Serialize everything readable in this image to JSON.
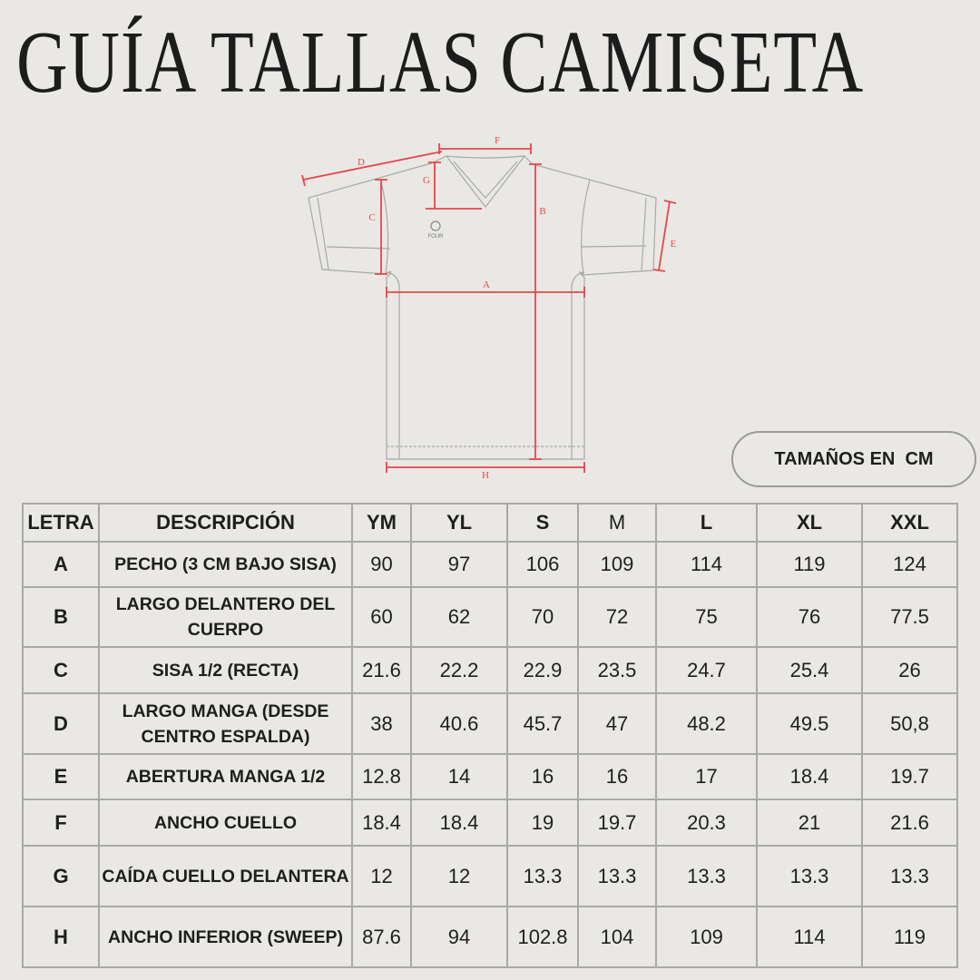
{
  "title": "GUÍA TALLAS CAMISETA",
  "diagram": {
    "labels": {
      "A": "A",
      "B": "B",
      "C": "C",
      "D": "D",
      "E": "E",
      "F": "F",
      "G": "G",
      "H": "H"
    },
    "logo_text": "FOUR",
    "measure_color": "#e8464a",
    "outline_color": "#a8a8a8"
  },
  "badge": "TAMAÑOS EN  CM",
  "table": {
    "headers": [
      "LETRA",
      "DESCRIPCIÓN",
      "YM",
      "YL",
      "S",
      "M",
      "L",
      "XL",
      "XXL"
    ],
    "rows": [
      {
        "letter": "A",
        "desc": "PECHO (3 CM BAJO SISA)",
        "values": [
          "90",
          "97",
          "106",
          "109",
          "114",
          "119",
          "124"
        ]
      },
      {
        "letter": "B",
        "desc": "LARGO DELANTERO DEL CUERPO",
        "values": [
          "60",
          "62",
          "70",
          "72",
          "75",
          "76",
          "77.5"
        ]
      },
      {
        "letter": "C",
        "desc": "SISA 1/2 (RECTA)",
        "values": [
          "21.6",
          "22.2",
          "22.9",
          "23.5",
          "24.7",
          "25.4",
          "26"
        ]
      },
      {
        "letter": "D",
        "desc": "LARGO MANGA (DESDE CENTRO ESPALDA)",
        "values": [
          "38",
          "40.6",
          "45.7",
          "47",
          "48.2",
          "49.5",
          "50,8"
        ]
      },
      {
        "letter": "E",
        "desc": "ABERTURA MANGA 1/2",
        "values": [
          "12.8",
          "14",
          "16",
          "16",
          "17",
          "18.4",
          "19.7"
        ]
      },
      {
        "letter": "F",
        "desc": "ANCHO CUELLO",
        "values": [
          "18.4",
          "18.4",
          "19",
          "19.7",
          "20.3",
          "21",
          "21.6"
        ]
      },
      {
        "letter": "G",
        "desc": "CAÍDA CUELLO DELANTERA",
        "values": [
          "12",
          "12",
          "13.3",
          "13.3",
          "13.3",
          "13.3",
          "13.3"
        ]
      },
      {
        "letter": "H",
        "desc": "ANCHO INFERIOR (SWEEP)",
        "values": [
          "87.6",
          "94",
          "102.8",
          "104",
          "109",
          "114",
          "119"
        ]
      }
    ]
  }
}
